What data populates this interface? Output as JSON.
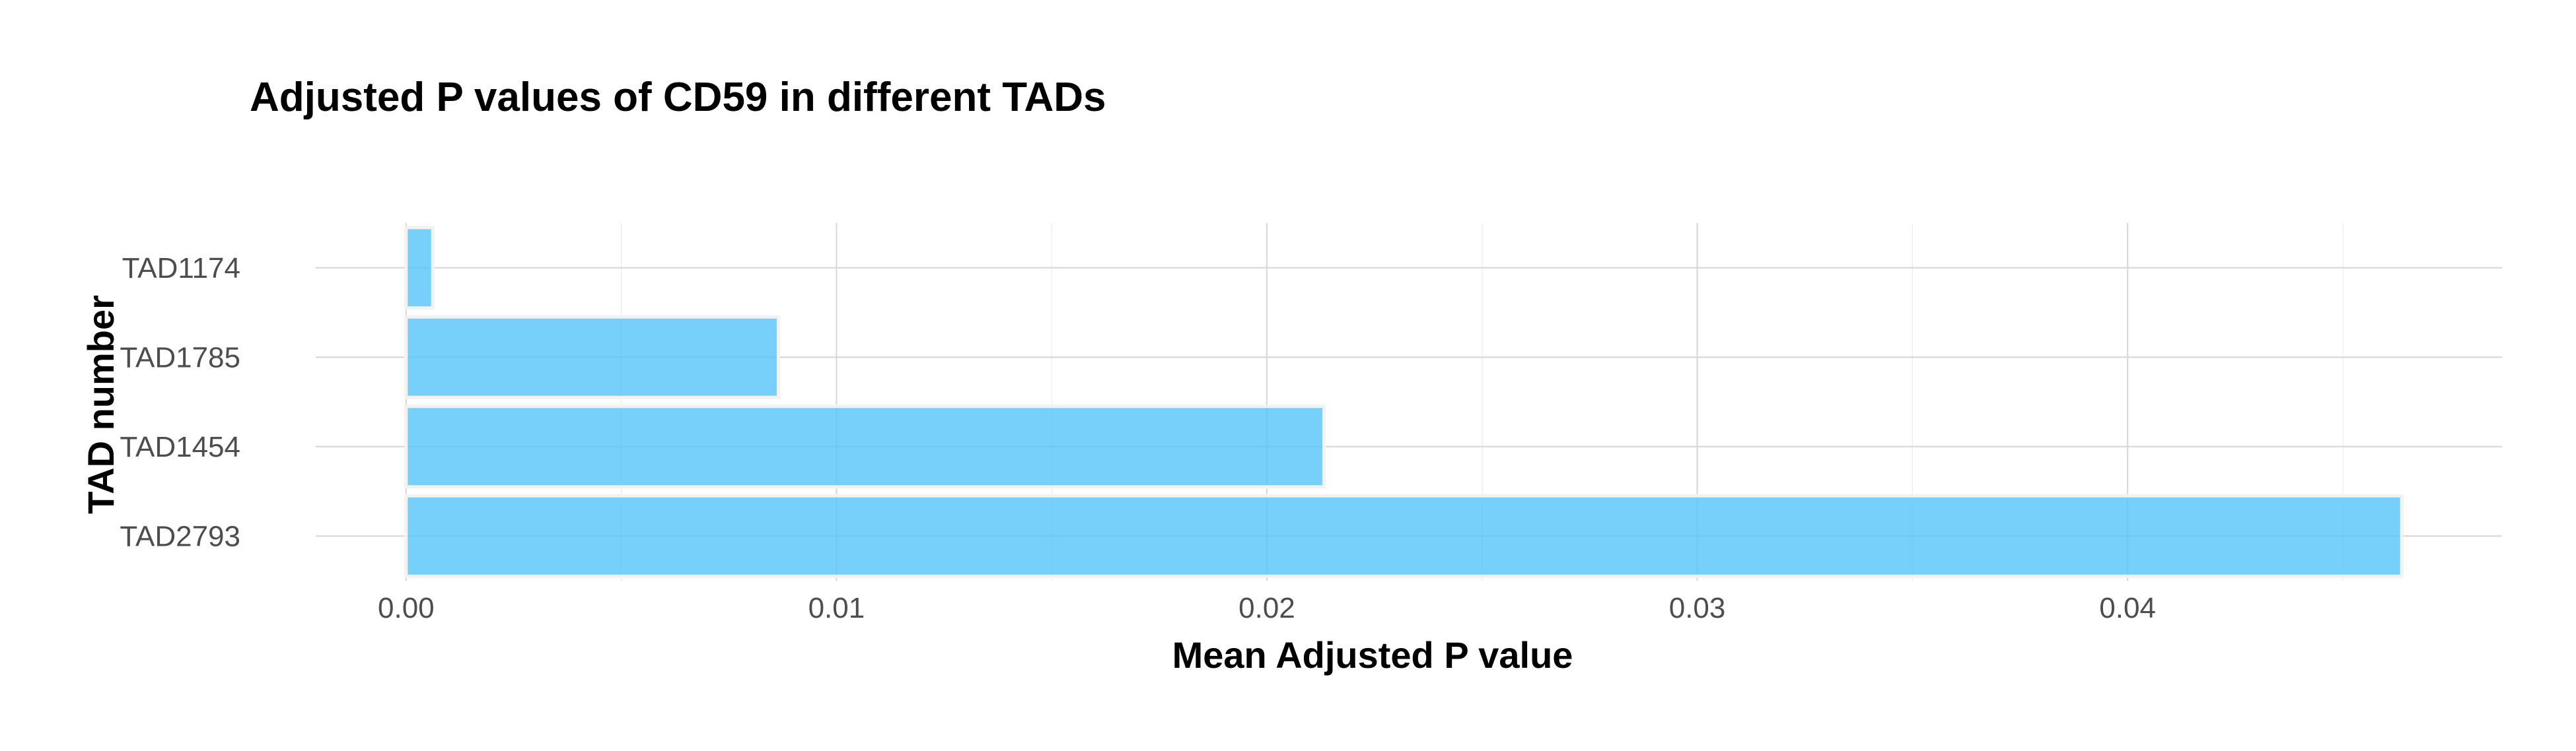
{
  "chart_data": {
    "type": "bar",
    "orientation": "horizontal",
    "title": "Adjusted P values of CD59 in different TADs",
    "xlabel": "Mean Adjusted P value",
    "ylabel": "TAD number",
    "categories": [
      "TAD1174",
      "TAD1785",
      "TAD1454",
      "TAD2793"
    ],
    "values": [
      0.00062,
      0.00865,
      0.02133,
      0.04637
    ],
    "xlim": [
      -0.0021,
      0.0487
    ],
    "xticks": [
      0.0,
      0.01,
      0.02,
      0.03,
      0.04
    ],
    "xtick_labels": [
      "0.00",
      "0.01",
      "0.02",
      "0.03",
      "0.04"
    ],
    "grid": true,
    "legend": "none",
    "bar_color": "#4fc3f7"
  }
}
